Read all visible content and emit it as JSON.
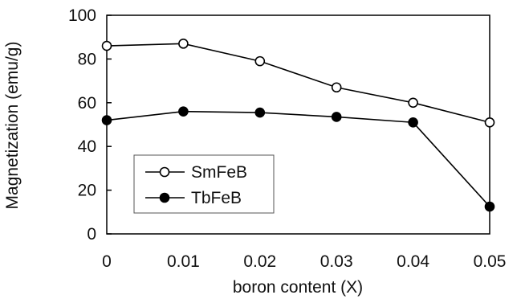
{
  "chart_data": {
    "type": "line",
    "title": "",
    "xlabel": "boron content (X)",
    "ylabel": "Magnetization (emu/g)",
    "x": [
      0,
      0.01,
      0.02,
      0.03,
      0.04,
      0.05
    ],
    "x_tick_labels": [
      "0",
      "0.01",
      "0.02",
      "0.03",
      "0.04",
      "0.05"
    ],
    "y_ticks": [
      0,
      20,
      40,
      60,
      80,
      100
    ],
    "y_tick_labels": [
      "0",
      "20",
      "40",
      "60",
      "80",
      "100"
    ],
    "xlim": [
      0,
      0.05
    ],
    "ylim": [
      0,
      100
    ],
    "grid": false,
    "legend_position": "bottom-left",
    "series": [
      {
        "name": "SmFeB",
        "marker": "open-circle",
        "color": "#000000",
        "values": [
          86,
          87,
          79,
          67,
          60,
          51
        ]
      },
      {
        "name": "TbFeB",
        "marker": "filled-circle",
        "color": "#000000",
        "values": [
          52,
          56,
          55.5,
          53.5,
          51,
          12.5
        ]
      }
    ]
  }
}
